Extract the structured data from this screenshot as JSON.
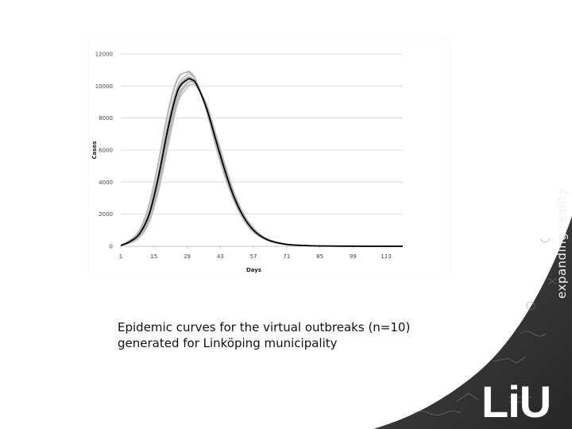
{
  "caption": {
    "line1": "Epidemic curves for the virtual outbreaks (n=10)",
    "line2": "generated for Linköping municipality"
  },
  "branding": {
    "logo": "LiU",
    "tagline": "expanding reality",
    "panel_color": "#3a3a3a",
    "text_color": "#ffffff"
  },
  "chart_data": {
    "type": "line",
    "xlabel": "Days",
    "ylabel": "Cases",
    "xlim": [
      1,
      120
    ],
    "ylim": [
      0,
      12000
    ],
    "x_ticks": [
      "1",
      "15",
      "29",
      "43",
      "57",
      "71",
      "85",
      "99",
      "113"
    ],
    "y_ticks": [
      "0",
      "2000",
      "4000",
      "6000",
      "8000",
      "10000",
      "12000"
    ],
    "grid": "horizontal",
    "x": [
      1,
      5,
      9,
      13,
      17,
      21,
      25,
      29,
      31,
      33,
      37,
      41,
      45,
      49,
      53,
      57,
      61,
      65,
      71,
      78,
      85,
      99,
      113,
      120
    ],
    "series": [
      {
        "color": "#000000",
        "values": [
          50,
          300,
          800,
          2000,
          4400,
          7400,
          9700,
          10400,
          10400,
          10100,
          8700,
          6700,
          4700,
          3000,
          1800,
          1000,
          550,
          300,
          120,
          50,
          20,
          5,
          0,
          0
        ]
      },
      {
        "color": "#b8b8b8",
        "values": [
          60,
          380,
          1000,
          2500,
          5200,
          8300,
          10400,
          10900,
          10800,
          10300,
          8600,
          6400,
          4400,
          2800,
          1650,
          900,
          500,
          260,
          100,
          45,
          18,
          4,
          0,
          0
        ]
      },
      {
        "color": "#b8b8b8",
        "values": [
          40,
          220,
          600,
          1600,
          3700,
          6600,
          9100,
          10100,
          10250,
          10000,
          8900,
          7000,
          5000,
          3200,
          1950,
          1100,
          600,
          320,
          130,
          55,
          22,
          5,
          0,
          0
        ]
      },
      {
        "color": "#b8b8b8",
        "values": [
          55,
          340,
          900,
          2200,
          4700,
          7800,
          10000,
          10700,
          10650,
          10250,
          8750,
          6600,
          4600,
          2900,
          1750,
          970,
          530,
          290,
          115,
          48,
          19,
          5,
          0,
          0
        ]
      },
      {
        "color": "#b8b8b8",
        "values": [
          45,
          260,
          700,
          1800,
          4000,
          7000,
          9400,
          10200,
          10300,
          10050,
          8800,
          6900,
          4900,
          3150,
          1900,
          1050,
          580,
          310,
          125,
          52,
          21,
          5,
          0,
          0
        ]
      },
      {
        "color": "#b8b8b8",
        "values": [
          50,
          300,
          820,
          2050,
          4500,
          7500,
          9800,
          10500,
          10450,
          10150,
          8650,
          6650,
          4650,
          2950,
          1780,
          990,
          540,
          295,
          118,
          49,
          20,
          5,
          0,
          0
        ]
      },
      {
        "color": "#b8b8b8",
        "values": [
          35,
          200,
          560,
          1500,
          3500,
          6300,
          8900,
          9900,
          10100,
          9950,
          8950,
          7100,
          5100,
          3300,
          2000,
          1150,
          620,
          330,
          135,
          57,
          23,
          6,
          0,
          0
        ]
      },
      {
        "color": "#b8b8b8",
        "values": [
          65,
          400,
          1050,
          2650,
          5400,
          8500,
          10500,
          10850,
          10700,
          10200,
          8500,
          6300,
          4300,
          2750,
          1600,
          880,
          480,
          250,
          98,
          43,
          17,
          4,
          0,
          0
        ]
      },
      {
        "color": "#b8b8b8",
        "values": [
          48,
          280,
          760,
          1900,
          4200,
          7200,
          9600,
          10350,
          10350,
          10080,
          8720,
          6750,
          4750,
          3050,
          1830,
          1010,
          560,
          300,
          120,
          50,
          20,
          5,
          0,
          0
        ]
      },
      {
        "color": "#b8b8b8",
        "values": [
          52,
          320,
          860,
          2100,
          4550,
          7600,
          9850,
          10550,
          10500,
          10120,
          8600,
          6550,
          4550,
          2880,
          1720,
          950,
          520,
          285,
          112,
          47,
          19,
          5,
          0,
          0
        ]
      },
      {
        "color": "#b8b8b8",
        "values": [
          42,
          240,
          650,
          1700,
          3850,
          6800,
          9250,
          10150,
          10280,
          10020,
          8850,
          6950,
          4950,
          3180,
          1920,
          1080,
          590,
          315,
          128,
          54,
          21,
          5,
          0,
          0
        ]
      }
    ]
  }
}
